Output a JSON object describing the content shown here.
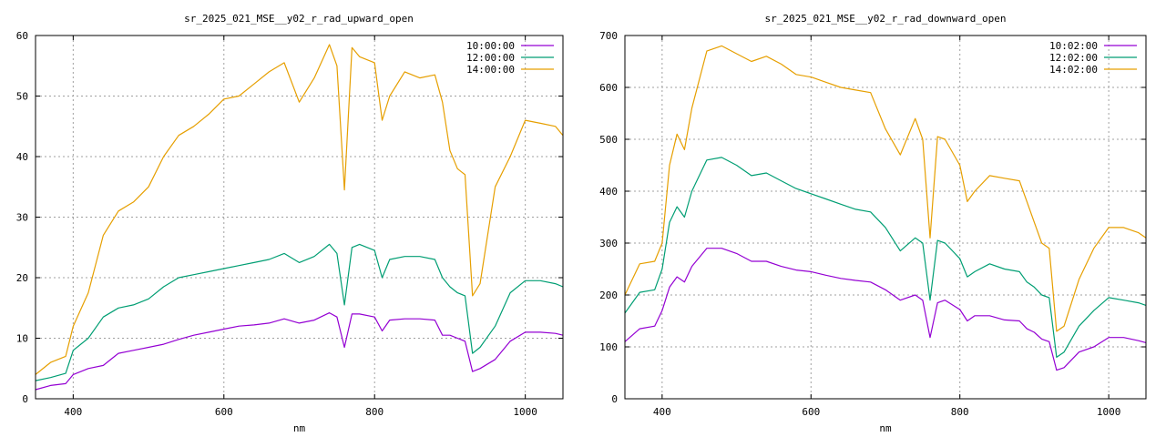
{
  "chart_data": [
    {
      "type": "line",
      "title": "sr_2025_021_MSE__y02_r_rad_upward_open",
      "xlabel": "nm",
      "ylabel": "",
      "xlim": [
        350,
        1050
      ],
      "ylim": [
        0,
        60
      ],
      "xticks": [
        400,
        600,
        800,
        1000
      ],
      "yticks": [
        0,
        10,
        20,
        30,
        40,
        50,
        60
      ],
      "grid": true,
      "legend_position": "top-right",
      "series": [
        {
          "name": "10:00:00",
          "color": "#9400d3",
          "x": [
            350,
            370,
            390,
            400,
            420,
            440,
            460,
            480,
            500,
            520,
            540,
            560,
            580,
            600,
            620,
            640,
            660,
            680,
            700,
            720,
            740,
            750,
            760,
            770,
            780,
            800,
            810,
            820,
            840,
            860,
            880,
            890,
            900,
            910,
            920,
            930,
            940,
            960,
            980,
            1000,
            1020,
            1040,
            1050
          ],
          "y": [
            1.5,
            2.2,
            2.5,
            4,
            5,
            5.5,
            7.5,
            8,
            8.5,
            9,
            9.8,
            10.5,
            11,
            11.5,
            12,
            12.2,
            12.5,
            13.2,
            12.5,
            13,
            14.2,
            13.5,
            8.5,
            14,
            14,
            13.5,
            11.2,
            13,
            13.2,
            13.2,
            13,
            10.5,
            10.5,
            10,
            9.5,
            4.5,
            5,
            6.5,
            9.5,
            11,
            11,
            10.8,
            10.5
          ]
        },
        {
          "name": "12:00:00",
          "color": "#009e73",
          "x": [
            350,
            370,
            390,
            400,
            420,
            440,
            460,
            480,
            500,
            520,
            540,
            560,
            580,
            600,
            620,
            640,
            660,
            680,
            700,
            720,
            740,
            750,
            760,
            770,
            780,
            800,
            810,
            820,
            840,
            860,
            880,
            890,
            900,
            910,
            920,
            930,
            940,
            960,
            980,
            1000,
            1020,
            1040,
            1050
          ],
          "y": [
            3,
            3.5,
            4.2,
            8,
            10,
            13.5,
            15,
            15.5,
            16.5,
            18.5,
            20,
            20.5,
            21,
            21.5,
            22,
            22.5,
            23,
            24,
            22.5,
            23.5,
            25.5,
            24,
            15.5,
            25,
            25.5,
            24.5,
            20,
            23,
            23.5,
            23.5,
            23,
            20,
            18.5,
            17.5,
            17,
            7.5,
            8.5,
            12,
            17.5,
            19.5,
            19.5,
            19,
            18.5
          ]
        },
        {
          "name": "14:00:00",
          "color": "#e69f00",
          "x": [
            350,
            370,
            390,
            400,
            420,
            440,
            460,
            480,
            500,
            520,
            540,
            560,
            580,
            600,
            620,
            640,
            660,
            680,
            700,
            720,
            740,
            750,
            760,
            770,
            780,
            800,
            810,
            820,
            840,
            860,
            880,
            890,
            900,
            910,
            920,
            930,
            940,
            960,
            980,
            1000,
            1020,
            1040,
            1050
          ],
          "y": [
            4,
            6,
            7,
            12,
            17.5,
            27,
            31,
            32.5,
            35,
            40,
            43.5,
            45,
            47,
            49.5,
            50,
            52,
            54,
            55.5,
            49,
            53,
            58.5,
            55,
            34.5,
            58,
            56.5,
            55.5,
            46,
            50,
            54,
            53,
            53.5,
            49,
            41,
            38,
            37,
            17,
            19,
            35,
            40,
            46,
            45.5,
            45,
            43.5
          ]
        }
      ]
    },
    {
      "type": "line",
      "title": "sr_2025_021_MSE__y02_r_rad_downward_open",
      "xlabel": "nm",
      "ylabel": "",
      "xlim": [
        350,
        1050
      ],
      "ylim": [
        0,
        700
      ],
      "xticks": [
        400,
        600,
        800,
        1000
      ],
      "yticks": [
        0,
        100,
        200,
        300,
        400,
        500,
        600,
        700
      ],
      "grid": true,
      "legend_position": "top-right",
      "series": [
        {
          "name": "10:02:00",
          "color": "#9400d3",
          "x": [
            350,
            370,
            390,
            400,
            410,
            420,
            430,
            440,
            460,
            480,
            500,
            520,
            540,
            560,
            580,
            600,
            620,
            640,
            660,
            680,
            700,
            720,
            740,
            750,
            760,
            770,
            780,
            800,
            810,
            820,
            840,
            860,
            880,
            890,
            900,
            910,
            920,
            930,
            940,
            960,
            980,
            1000,
            1020,
            1040,
            1050
          ],
          "y": [
            110,
            135,
            140,
            170,
            215,
            235,
            225,
            255,
            290,
            290,
            280,
            265,
            265,
            255,
            248,
            245,
            238,
            232,
            228,
            225,
            210,
            190,
            200,
            190,
            118,
            185,
            190,
            172,
            150,
            160,
            160,
            152,
            150,
            135,
            128,
            115,
            110,
            55,
            60,
            90,
            100,
            118,
            118,
            112,
            108
          ]
        },
        {
          "name": "12:02:00",
          "color": "#009e73",
          "x": [
            350,
            370,
            390,
            400,
            410,
            420,
            430,
            440,
            460,
            480,
            500,
            520,
            540,
            560,
            580,
            600,
            620,
            640,
            660,
            680,
            700,
            720,
            740,
            750,
            760,
            770,
            780,
            800,
            810,
            820,
            840,
            860,
            880,
            890,
            900,
            910,
            920,
            930,
            940,
            960,
            980,
            1000,
            1020,
            1040,
            1050
          ],
          "y": [
            165,
            205,
            210,
            250,
            340,
            370,
            350,
            400,
            460,
            465,
            450,
            430,
            435,
            420,
            405,
            395,
            385,
            375,
            365,
            360,
            330,
            285,
            310,
            300,
            190,
            305,
            300,
            270,
            235,
            245,
            260,
            250,
            245,
            225,
            215,
            200,
            195,
            80,
            90,
            140,
            170,
            195,
            190,
            185,
            180
          ]
        },
        {
          "name": "14:02:00",
          "color": "#e69f00",
          "x": [
            350,
            370,
            390,
            400,
            410,
            420,
            430,
            440,
            460,
            480,
            500,
            520,
            540,
            560,
            580,
            600,
            620,
            640,
            660,
            680,
            700,
            720,
            740,
            750,
            760,
            770,
            780,
            800,
            810,
            820,
            840,
            860,
            880,
            890,
            900,
            910,
            920,
            930,
            940,
            960,
            980,
            1000,
            1020,
            1040,
            1050
          ],
          "y": [
            200,
            260,
            265,
            300,
            450,
            510,
            480,
            560,
            670,
            680,
            665,
            650,
            660,
            645,
            625,
            620,
            610,
            600,
            595,
            590,
            520,
            470,
            540,
            500,
            310,
            505,
            500,
            450,
            380,
            400,
            430,
            425,
            420,
            380,
            340,
            300,
            290,
            130,
            140,
            230,
            290,
            330,
            330,
            320,
            310
          ]
        }
      ]
    }
  ]
}
